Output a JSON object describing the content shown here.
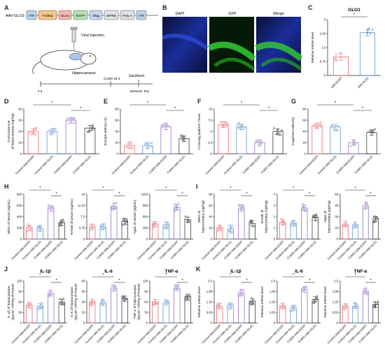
{
  "panel_labels": {
    "A": "A",
    "B": "B",
    "C": "C",
    "D": "D",
    "E": "E",
    "F": "F",
    "G": "G",
    "H": "H",
    "I": "I",
    "J": "J",
    "K": "K"
  },
  "construct": {
    "lead": "AAV-GLO1-",
    "boxes": [
      "ITR",
      "F4/80p",
      "GLO1",
      "EGFP",
      "3flag",
      "WPRE",
      "Poly A",
      "ITR"
    ],
    "colors": [
      "#b9d3ea",
      "#f6c68a",
      "#f4b7b7",
      "#b9e0b4",
      "#c9d7ef",
      "#dfe3e8",
      "#dfe3e8",
      "#b9d3ea"
    ]
  },
  "procedure": {
    "viral_injection": "Viral Injection",
    "hippocampus": "Hippocampus",
    "timeline": [
      "0 d",
      "CUMS\n56 d",
      "Sacrificed",
      "Behavior\nTest"
    ]
  },
  "micrographs": {
    "titles": [
      "DAPI",
      "GFP",
      "Merge"
    ]
  },
  "groups4": [
    "Control+AAV-EGFP",
    "Control+AAV-GLO1",
    "CUMS+AAV-EGFP",
    "CUMS+AAV-GLO1"
  ],
  "groups2": [
    "AAV-EGFP",
    "AAV-GLO1"
  ],
  "colors": {
    "g1": "#e8545a",
    "g2": "#4a86c8",
    "g3": "#8a5cc0",
    "g4": "#222222",
    "c1": "#e8545a",
    "c2": "#4a86c8"
  },
  "chart_data": [
    {
      "id": "C",
      "type": "bar",
      "title": "GLO1",
      "ylabel": "Relative mRNA level",
      "categories": [
        "AAV-EGFP",
        "AAV-GLO1"
      ],
      "values": [
        1.0,
        2.3
      ],
      "ylim": [
        0,
        3
      ],
      "sig": [
        "*"
      ]
    },
    {
      "id": "D",
      "type": "bar",
      "title": "",
      "ylabel": "Corticosterone\nof hippocampus (ng/mg)",
      "categories": [
        "Control+AAV-EGFP",
        "Control+AAV-GLO1",
        "CUMS+AAV-EGFP",
        "CUMS+AAV-GLO1"
      ],
      "values": [
        20,
        20,
        30,
        23
      ],
      "ylim": [
        0,
        40
      ],
      "sig": [
        "*",
        "*"
      ]
    },
    {
      "id": "E",
      "type": "bar",
      "title": "",
      "ylabel": "Escape latency (s)",
      "categories": [
        "Control+AAV-EGFP",
        "Control+AAV-GLO1",
        "CUMS+AAV-EGFP",
        "CUMS+AAV-GLO1"
      ],
      "values": [
        15,
        14,
        48,
        27
      ],
      "ylim": [
        0,
        80
      ],
      "sig": [
        "*",
        "*"
      ]
    },
    {
      "id": "F",
      "type": "bar",
      "title": "",
      "ylabel": "Crossing platform Times",
      "categories": [
        "Control+AAV-EGFP",
        "Control+AAV-GLO1",
        "CUMS+AAV-EGFP",
        "CUMS+AAV-GLO1"
      ],
      "values": [
        6.5,
        6,
        2.5,
        5
      ],
      "ylim": [
        0,
        10
      ],
      "sig": [
        "*",
        "*"
      ]
    },
    {
      "id": "G",
      "type": "bar",
      "title": "",
      "ylabel": "Cognitive index(%)",
      "categories": [
        "Control+AAV-EGFP",
        "Control+AAV-GLO1",
        "CUMS+AAV-EGFP",
        "CUMS+AAV-GLO1"
      ],
      "values": [
        50,
        48,
        20,
        38
      ],
      "ylim": [
        0,
        80
      ],
      "sig": [
        "*",
        "*"
      ]
    },
    {
      "id": "H1",
      "type": "bar",
      "title": "",
      "ylabel": "MGO of serum (ng/mL)",
      "categories": [
        "Control+AAV-EGFP",
        "Control+AAV-GLO1",
        "CUMS+AAV-EGFP",
        "CUMS+AAV-GLO1"
      ],
      "values": [
        200,
        190,
        550,
        290
      ],
      "ylim": [
        0,
        800
      ],
      "sig": [
        "*",
        "*"
      ]
    },
    {
      "id": "H2",
      "type": "bar",
      "title": "",
      "ylabel": "RAGE of serum (ng/mL)",
      "categories": [
        "Control+AAV-EGFP",
        "Control+AAV-GLO1",
        "CUMS+AAV-EGFP",
        "CUMS+AAV-GLO1"
      ],
      "values": [
        4,
        4,
        11,
        6
      ],
      "ylim": [
        0,
        15
      ],
      "sig": [
        "*",
        "*"
      ]
    },
    {
      "id": "H3",
      "type": "bar",
      "title": "",
      "ylabel": "Ages of serum (pg/mL)",
      "categories": [
        "Control+AAV-EGFP",
        "Control+AAV-GLO1",
        "CUMS+AAV-EGFP",
        "CUMS+AAV-GLO1"
      ],
      "values": [
        400,
        380,
        850,
        520
      ],
      "ylim": [
        0,
        1200
      ],
      "sig": [
        "*",
        "*"
      ]
    },
    {
      "id": "I1",
      "type": "bar",
      "title": "",
      "ylabel": "MGO of\nhippocampus (ng/mg)",
      "categories": [
        "Control+AAV-EGFP",
        "Control+AAV-GLO1",
        "CUMS+AAV-EGFP",
        "CUMS+AAV-GLO1"
      ],
      "values": [
        20,
        18,
        55,
        28
      ],
      "ylim": [
        0,
        80
      ],
      "sig": [
        "*",
        "*"
      ]
    },
    {
      "id": "I2",
      "type": "bar",
      "title": "",
      "ylabel": "RAGE of\nhippocampus (ng/mg)",
      "categories": [
        "Control+AAV-EGFP",
        "Control+AAV-GLO1",
        "CUMS+AAV-EGFP",
        "CUMS+AAV-GLO1"
      ],
      "values": [
        1.5,
        1.4,
        2.8,
        1.9
      ],
      "ylim": [
        0,
        4
      ],
      "sig": [
        "*",
        "*"
      ]
    },
    {
      "id": "I3",
      "type": "bar",
      "title": "",
      "ylabel": "Ages of\nhippocampus (pg/mg)",
      "categories": [
        "Control+AAV-EGFP",
        "Control+AAV-GLO1",
        "CUMS+AAV-EGFP",
        "CUMS+AAV-GLO1"
      ],
      "values": [
        20,
        19,
        45,
        27
      ],
      "ylim": [
        0,
        60
      ],
      "sig": [
        "*",
        "*"
      ]
    },
    {
      "id": "J1",
      "type": "bar",
      "title": "IL-1β",
      "ylabel": "IL-1β of hippocampus\n(pg per 100mg of tissue)",
      "categories": [
        "Control+AAV-EGFP",
        "Control+AAV-GLO1",
        "CUMS+AAV-EGFP",
        "CUMS+AAV-GLO1"
      ],
      "values": [
        50,
        48,
        85,
        60
      ],
      "ylim": [
        0,
        120
      ],
      "sig": [
        "*",
        "*"
      ]
    },
    {
      "id": "J2",
      "type": "bar",
      "title": "IL-6",
      "ylabel": "IL-6 of hippocampus\n(pg per 100mg of tissue)",
      "categories": [
        "Control+AAV-EGFP",
        "Control+AAV-GLO1",
        "CUMS+AAV-EGFP",
        "CUMS+AAV-GLO1"
      ],
      "values": [
        30,
        29,
        50,
        35
      ],
      "ylim": [
        0,
        60
      ],
      "sig": [
        "*",
        "*"
      ]
    },
    {
      "id": "J3",
      "type": "bar",
      "title": "TNF-α",
      "ylabel": "TNF-α of hippocampus\n(pg per 100mg of tissue)",
      "categories": [
        "Control+AAV-EGFP",
        "Control+AAV-GLO1",
        "CUMS+AAV-EGFP",
        "CUMS+AAV-GLO1"
      ],
      "values": [
        60,
        58,
        100,
        75
      ],
      "ylim": [
        0,
        120
      ],
      "sig": [
        "*",
        "*"
      ]
    },
    {
      "id": "K1",
      "type": "bar",
      "title": "IL-1β",
      "ylabel": "Relative mRNA level",
      "categories": [
        "Control+AAV-EGFP",
        "Control+AAV-GLO1",
        "CUMS+AAV-EGFP",
        "CUMS+AAV-GLO1"
      ],
      "values": [
        1.0,
        1.0,
        1.8,
        1.3
      ],
      "ylim": [
        0,
        2.5
      ],
      "sig": [
        "*",
        "*"
      ]
    },
    {
      "id": "K2",
      "type": "bar",
      "title": "IL-6",
      "ylabel": "Relative mRNA level",
      "categories": [
        "Control+AAV-EGFP",
        "Control+AAV-GLO1",
        "CUMS+AAV-EGFP",
        "CUMS+AAV-GLO1"
      ],
      "values": [
        1.0,
        0.9,
        2.0,
        1.4
      ],
      "ylim": [
        0,
        2.5
      ],
      "sig": [
        "*",
        "*"
      ]
    },
    {
      "id": "K3",
      "type": "bar",
      "title": "TNF-α",
      "ylabel": "Relative mRNA level",
      "categories": [
        "Control+AAV-EGFP",
        "Control+AAV-GLO1",
        "CUMS+AAV-EGFP",
        "CUMS+AAV-GLO1"
      ],
      "values": [
        1.0,
        1.0,
        1.9,
        1.1
      ],
      "ylim": [
        0,
        2.5
      ],
      "sig": [
        "*",
        "*"
      ]
    }
  ]
}
